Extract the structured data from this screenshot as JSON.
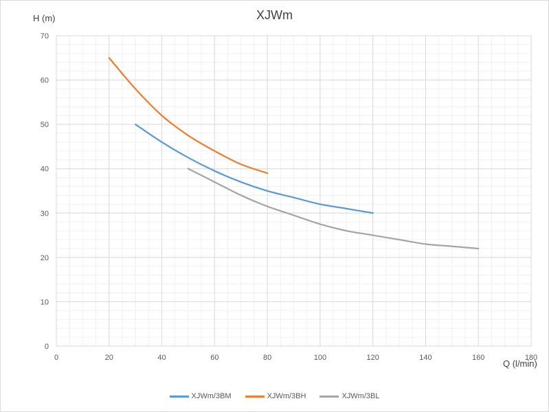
{
  "chart_data": {
    "type": "line",
    "title": "XJWm",
    "xlabel": "Q (l/min)",
    "ylabel": "H (m)",
    "xlim": [
      0,
      180
    ],
    "ylim": [
      0,
      70
    ],
    "x_ticks": [
      0,
      20,
      40,
      60,
      80,
      100,
      120,
      140,
      160,
      180
    ],
    "y_ticks": [
      0,
      10,
      20,
      30,
      40,
      50,
      60,
      70
    ],
    "x_minor_step": 5,
    "y_minor_step": 2,
    "grid": true,
    "legend": "bottom",
    "series": [
      {
        "name": "XJWm/3BM",
        "color": "#5b9bd5",
        "x": [
          30,
          40,
          50,
          60,
          70,
          80,
          90,
          100,
          110,
          120
        ],
        "y": [
          50,
          46,
          42.5,
          39.5,
          37,
          35,
          33.5,
          32,
          31,
          30
        ]
      },
      {
        "name": "XJWm/3BH",
        "color": "#ed7d31",
        "x": [
          20,
          30,
          40,
          50,
          60,
          70,
          80
        ],
        "y": [
          65,
          58,
          52,
          47.5,
          44,
          41,
          39
        ]
      },
      {
        "name": "XJWm/3BL",
        "color": "#a5a5a5",
        "x": [
          50,
          60,
          70,
          80,
          90,
          100,
          110,
          120,
          130,
          140,
          150,
          160
        ],
        "y": [
          40,
          37,
          34,
          31.5,
          29.5,
          27.5,
          26,
          25,
          24,
          23,
          22.5,
          22
        ]
      }
    ]
  }
}
